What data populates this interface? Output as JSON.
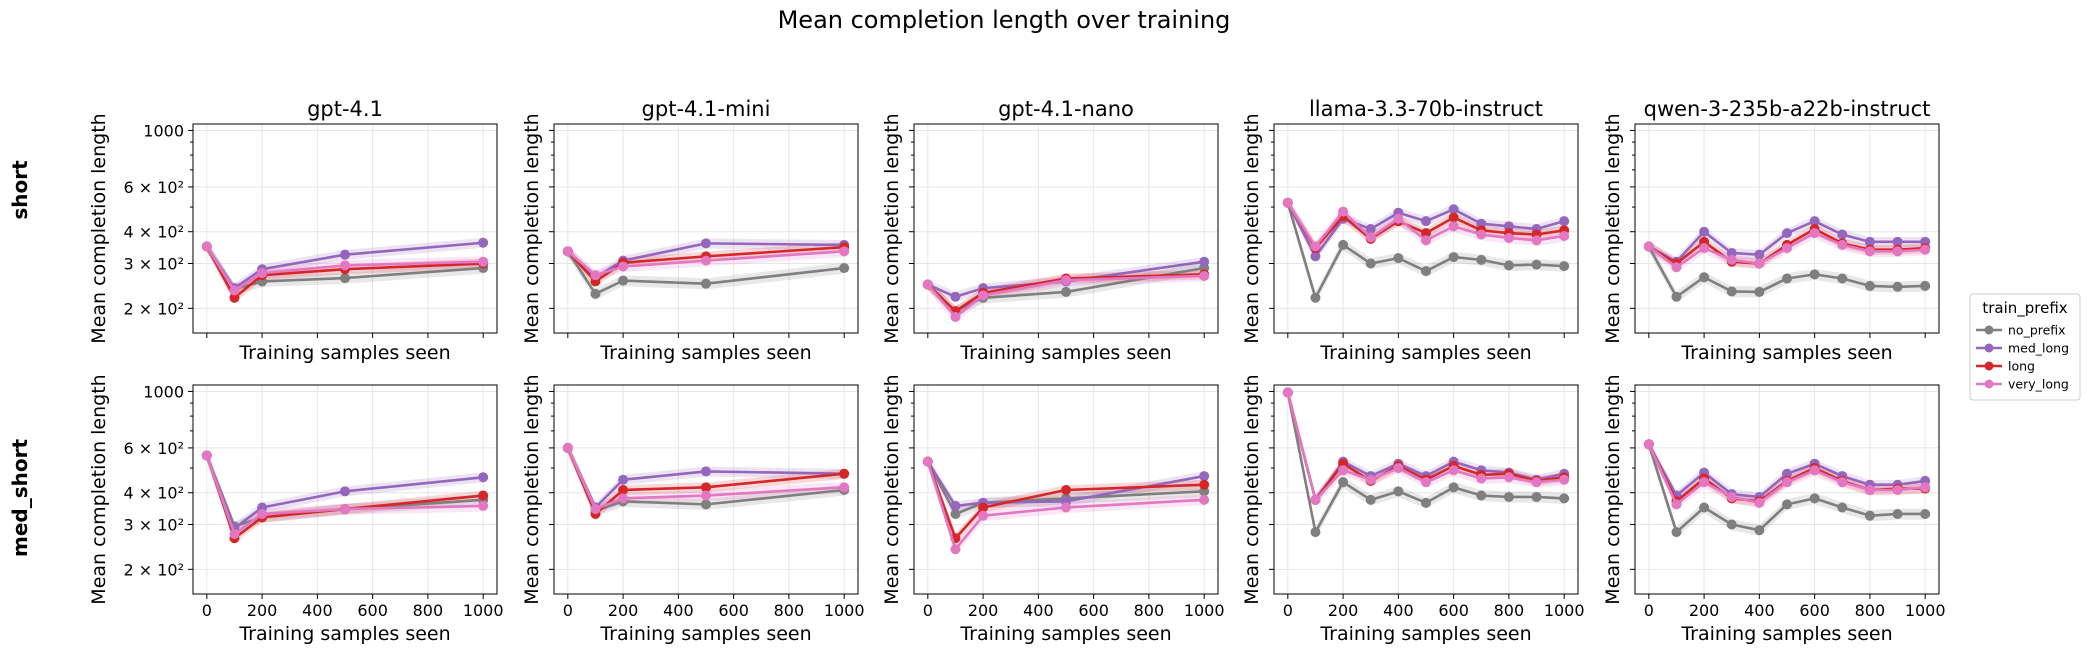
{
  "suptitle": "Mean completion length over training",
  "row_labels": [
    "short",
    "med_short"
  ],
  "legend": {
    "title": "train_prefix",
    "entries": [
      {
        "name": "no_prefix",
        "color": "#7f7f7f"
      },
      {
        "name": "med_long",
        "color": "#9467bd"
      },
      {
        "name": "long",
        "color": "#d62728"
      },
      {
        "name": "very_long",
        "color": "#e377c2"
      }
    ]
  },
  "axes_text": {
    "xlabel": "Training samples seen",
    "ylabel": "Mean completion length",
    "xticks": [
      "0",
      "200",
      "400",
      "600",
      "800",
      "1000"
    ],
    "yticks": [
      "2 × 10²",
      "3 × 10²",
      "4 × 10²",
      "6 × 10²",
      "1000"
    ]
  },
  "chart_data": [
    {
      "type": "line",
      "title": "gpt-4.1",
      "row": "short",
      "yscale": "log",
      "xlim": [
        -50,
        1050
      ],
      "ylim": [
        160,
        1060
      ],
      "series": [
        {
          "name": "no_prefix",
          "x": [
            0,
            100,
            200,
            500,
            1000
          ],
          "y": [
            350,
            238,
            255,
            263,
            288
          ]
        },
        {
          "name": "med_long",
          "x": [
            0,
            100,
            200,
            500,
            1000
          ],
          "y": [
            350,
            240,
            285,
            325,
            362
          ]
        },
        {
          "name": "long",
          "x": [
            0,
            100,
            200,
            500,
            1000
          ],
          "y": [
            350,
            220,
            270,
            285,
            300
          ]
        },
        {
          "name": "very_long",
          "x": [
            0,
            100,
            200,
            500,
            1000
          ],
          "y": [
            350,
            235,
            275,
            295,
            305
          ]
        }
      ]
    },
    {
      "type": "line",
      "title": "gpt-4.1-mini",
      "row": "short",
      "yscale": "log",
      "xlim": [
        -50,
        1050
      ],
      "ylim": [
        160,
        1060
      ],
      "series": [
        {
          "name": "no_prefix",
          "x": [
            0,
            100,
            200,
            500,
            1000
          ],
          "y": [
            335,
            228,
            257,
            250,
            288
          ]
        },
        {
          "name": "med_long",
          "x": [
            0,
            100,
            200,
            500,
            1000
          ],
          "y": [
            335,
            265,
            308,
            360,
            355
          ]
        },
        {
          "name": "long",
          "x": [
            0,
            100,
            200,
            500,
            1000
          ],
          "y": [
            335,
            255,
            302,
            320,
            348
          ]
        },
        {
          "name": "very_long",
          "x": [
            0,
            100,
            200,
            500,
            1000
          ],
          "y": [
            335,
            270,
            292,
            308,
            335
          ]
        }
      ]
    },
    {
      "type": "line",
      "title": "gpt-4.1-nano",
      "row": "short",
      "yscale": "log",
      "xlim": [
        -50,
        1050
      ],
      "ylim": [
        160,
        1060
      ],
      "series": [
        {
          "name": "no_prefix",
          "x": [
            0,
            100,
            200,
            500,
            1000
          ],
          "y": [
            248,
            195,
            220,
            232,
            288
          ]
        },
        {
          "name": "med_long",
          "x": [
            0,
            100,
            200,
            500,
            1000
          ],
          "y": [
            248,
            222,
            240,
            255,
            305
          ]
        },
        {
          "name": "long",
          "x": [
            0,
            100,
            200,
            500,
            1000
          ],
          "y": [
            248,
            195,
            230,
            262,
            272
          ]
        },
        {
          "name": "very_long",
          "x": [
            0,
            100,
            200,
            500,
            1000
          ],
          "y": [
            248,
            185,
            225,
            258,
            268
          ]
        }
      ]
    },
    {
      "type": "line",
      "title": "llama-3.3-70b-instruct",
      "row": "short",
      "yscale": "log",
      "xlim": [
        -50,
        1050
      ],
      "ylim": [
        160,
        1060
      ],
      "series": [
        {
          "name": "no_prefix",
          "x": [
            0,
            100,
            200,
            300,
            400,
            500,
            600,
            700,
            800,
            900,
            1000
          ],
          "y": [
            520,
            220,
            355,
            300,
            315,
            280,
            318,
            310,
            295,
            297,
            293
          ]
        },
        {
          "name": "med_long",
          "x": [
            0,
            100,
            200,
            300,
            400,
            500,
            600,
            700,
            800,
            900,
            1000
          ],
          "y": [
            520,
            320,
            450,
            410,
            475,
            440,
            490,
            430,
            420,
            410,
            440
          ]
        },
        {
          "name": "long",
          "x": [
            0,
            100,
            200,
            300,
            400,
            500,
            600,
            700,
            800,
            900,
            1000
          ],
          "y": [
            520,
            345,
            460,
            375,
            440,
            395,
            455,
            405,
            395,
            390,
            405
          ]
        },
        {
          "name": "very_long",
          "x": [
            0,
            100,
            200,
            300,
            400,
            500,
            600,
            700,
            800,
            900,
            1000
          ],
          "y": [
            520,
            350,
            480,
            380,
            450,
            370,
            420,
            390,
            378,
            370,
            385
          ]
        }
      ]
    },
    {
      "type": "line",
      "title": "qwen-3-235b-a22b-instruct",
      "row": "short",
      "yscale": "log",
      "xlim": [
        -50,
        1050
      ],
      "ylim": [
        160,
        1060
      ],
      "series": [
        {
          "name": "no_prefix",
          "x": [
            0,
            100,
            200,
            300,
            400,
            500,
            600,
            700,
            800,
            900,
            1000
          ],
          "y": [
            350,
            222,
            265,
            233,
            232,
            262,
            272,
            262,
            245,
            243,
            245
          ]
        },
        {
          "name": "med_long",
          "x": [
            0,
            100,
            200,
            300,
            400,
            500,
            600,
            700,
            800,
            900,
            1000
          ],
          "y": [
            350,
            305,
            400,
            330,
            325,
            395,
            440,
            390,
            365,
            365,
            365
          ]
        },
        {
          "name": "long",
          "x": [
            0,
            100,
            200,
            300,
            400,
            500,
            600,
            700,
            800,
            900,
            1000
          ],
          "y": [
            350,
            300,
            365,
            305,
            300,
            355,
            410,
            360,
            340,
            340,
            345
          ]
        },
        {
          "name": "very_long",
          "x": [
            0,
            100,
            200,
            300,
            400,
            500,
            600,
            700,
            800,
            900,
            1000
          ],
          "y": [
            350,
            290,
            345,
            310,
            300,
            345,
            395,
            355,
            335,
            335,
            340
          ]
        }
      ]
    },
    {
      "type": "line",
      "title": "",
      "row": "med_short",
      "yscale": "log",
      "xlim": [
        -50,
        1050
      ],
      "ylim": [
        160,
        1060
      ],
      "series": [
        {
          "name": "no_prefix",
          "x": [
            0,
            100,
            200,
            500,
            1000
          ],
          "y": [
            560,
            295,
            320,
            345,
            375
          ]
        },
        {
          "name": "med_long",
          "x": [
            0,
            100,
            200,
            500,
            1000
          ],
          "y": [
            560,
            290,
            350,
            405,
            460
          ]
        },
        {
          "name": "long",
          "x": [
            0,
            100,
            200,
            500,
            1000
          ],
          "y": [
            560,
            265,
            320,
            345,
            390
          ]
        },
        {
          "name": "very_long",
          "x": [
            0,
            100,
            200,
            500,
            1000
          ],
          "y": [
            560,
            275,
            330,
            345,
            355
          ]
        }
      ]
    },
    {
      "type": "line",
      "title": "",
      "row": "med_short",
      "yscale": "log",
      "xlim": [
        -50,
        1050
      ],
      "ylim": [
        160,
        1060
      ],
      "series": [
        {
          "name": "no_prefix",
          "x": [
            0,
            100,
            200,
            500,
            1000
          ],
          "y": [
            600,
            340,
            370,
            360,
            410
          ]
        },
        {
          "name": "med_long",
          "x": [
            0,
            100,
            200,
            500,
            1000
          ],
          "y": [
            600,
            350,
            450,
            485,
            475
          ]
        },
        {
          "name": "long",
          "x": [
            0,
            100,
            200,
            500,
            1000
          ],
          "y": [
            600,
            330,
            410,
            420,
            475
          ]
        },
        {
          "name": "very_long",
          "x": [
            0,
            100,
            200,
            500,
            1000
          ],
          "y": [
            600,
            345,
            380,
            390,
            420
          ]
        }
      ]
    },
    {
      "type": "line",
      "title": "",
      "row": "med_short",
      "yscale": "log",
      "xlim": [
        -50,
        1050
      ],
      "ylim": [
        160,
        1060
      ],
      "series": [
        {
          "name": "no_prefix",
          "x": [
            0,
            100,
            200,
            500,
            1000
          ],
          "y": [
            530,
            330,
            365,
            380,
            405
          ]
        },
        {
          "name": "med_long",
          "x": [
            0,
            100,
            200,
            500,
            1000
          ],
          "y": [
            530,
            355,
            365,
            370,
            465
          ]
        },
        {
          "name": "long",
          "x": [
            0,
            100,
            200,
            500,
            1000
          ],
          "y": [
            530,
            265,
            350,
            410,
            430
          ]
        },
        {
          "name": "very_long",
          "x": [
            0,
            100,
            200,
            500,
            1000
          ],
          "y": [
            530,
            240,
            325,
            350,
            375
          ]
        }
      ]
    },
    {
      "type": "line",
      "title": "",
      "row": "med_short",
      "yscale": "log",
      "xlim": [
        -50,
        1050
      ],
      "ylim": [
        160,
        1060
      ],
      "series": [
        {
          "name": "no_prefix",
          "x": [
            0,
            100,
            200,
            300,
            400,
            500,
            600,
            700,
            800,
            900,
            1000
          ],
          "y": [
            990,
            280,
            440,
            375,
            405,
            365,
            420,
            390,
            385,
            385,
            380
          ]
        },
        {
          "name": "med_long",
          "x": [
            0,
            100,
            200,
            300,
            400,
            500,
            600,
            700,
            800,
            900,
            1000
          ],
          "y": [
            990,
            375,
            530,
            465,
            520,
            465,
            530,
            490,
            480,
            450,
            475
          ]
        },
        {
          "name": "long",
          "x": [
            0,
            100,
            200,
            300,
            400,
            500,
            600,
            700,
            800,
            900,
            1000
          ],
          "y": [
            990,
            375,
            520,
            445,
            510,
            450,
            510,
            470,
            475,
            445,
            460
          ]
        },
        {
          "name": "very_long",
          "x": [
            0,
            100,
            200,
            300,
            400,
            500,
            600,
            700,
            800,
            900,
            1000
          ],
          "y": [
            990,
            375,
            490,
            450,
            500,
            440,
            490,
            455,
            460,
            440,
            450
          ]
        }
      ]
    },
    {
      "type": "line",
      "title": "",
      "row": "med_short",
      "yscale": "log",
      "xlim": [
        -50,
        1050
      ],
      "ylim": [
        160,
        1060
      ],
      "series": [
        {
          "name": "no_prefix",
          "x": [
            0,
            100,
            200,
            300,
            400,
            500,
            600,
            700,
            800,
            900,
            1000
          ],
          "y": [
            620,
            280,
            350,
            300,
            285,
            360,
            380,
            350,
            325,
            330,
            330
          ]
        },
        {
          "name": "med_long",
          "x": [
            0,
            100,
            200,
            300,
            400,
            500,
            600,
            700,
            800,
            900,
            1000
          ],
          "y": [
            620,
            390,
            480,
            395,
            385,
            475,
            520,
            465,
            430,
            430,
            445
          ]
        },
        {
          "name": "long",
          "x": [
            0,
            100,
            200,
            300,
            400,
            500,
            600,
            700,
            800,
            900,
            1000
          ],
          "y": [
            620,
            370,
            455,
            380,
            370,
            445,
            500,
            445,
            410,
            415,
            415
          ]
        },
        {
          "name": "very_long",
          "x": [
            0,
            100,
            200,
            300,
            400,
            500,
            600,
            700,
            800,
            900,
            1000
          ],
          "y": [
            620,
            360,
            440,
            385,
            365,
            440,
            490,
            440,
            410,
            410,
            420
          ]
        }
      ]
    }
  ]
}
